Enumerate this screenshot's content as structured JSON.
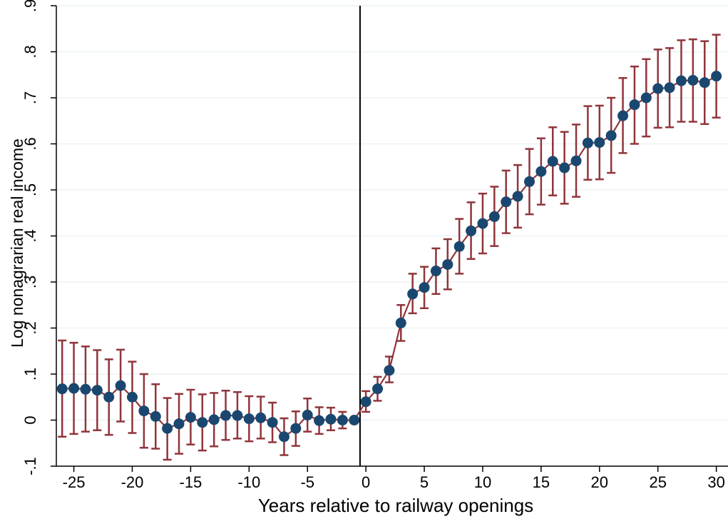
{
  "chart_data": {
    "type": "line",
    "xlabel": "Years relative to railway openings",
    "ylabel": "Log nonagrarian real income",
    "xlim": [
      -26.5,
      31
    ],
    "ylim": [
      -0.1,
      0.9
    ],
    "xticks": [
      -25,
      -20,
      -15,
      -10,
      -5,
      0,
      5,
      10,
      15,
      20,
      25,
      30
    ],
    "xtick_labels": [
      "-25",
      "-20",
      "-15",
      "-10",
      "-5",
      "0",
      "5",
      "10",
      "15",
      "20",
      "25",
      "30"
    ],
    "yticks": [
      -0.1,
      0,
      0.1,
      0.2,
      0.3,
      0.4,
      0.5,
      0.6,
      0.7,
      0.8,
      0.9
    ],
    "ytick_labels": [
      "-.1",
      "0",
      ".1",
      ".2",
      ".3",
      ".4",
      ".5",
      ".6",
      ".7",
      ".8",
      ".9"
    ],
    "grid": true,
    "vline_x": -0.5,
    "colors": {
      "marker": "#1a476f",
      "line": "#90353b",
      "grid": "#eaf2f3",
      "vline": "#000000"
    },
    "x": [
      -26,
      -25,
      -24,
      -23,
      -22,
      -21,
      -20,
      -19,
      -18,
      -17,
      -16,
      -15,
      -14,
      -13,
      -12,
      -11,
      -10,
      -9,
      -8,
      -7,
      -6,
      -5,
      -4,
      -3,
      -2,
      -1,
      0,
      1,
      2,
      3,
      4,
      5,
      6,
      7,
      8,
      9,
      10,
      11,
      12,
      13,
      14,
      15,
      16,
      17,
      18,
      19,
      20,
      21,
      22,
      23,
      24,
      25,
      26,
      27,
      28,
      29,
      30
    ],
    "y": [
      0.068,
      0.069,
      0.067,
      0.065,
      0.05,
      0.075,
      0.05,
      0.02,
      0.008,
      -0.018,
      -0.008,
      0.006,
      -0.005,
      0.001,
      0.01,
      0.01,
      0.003,
      0.005,
      -0.005,
      -0.036,
      -0.018,
      0.011,
      -0.001,
      0.002,
      0.0,
      0.0,
      0.04,
      0.068,
      0.108,
      0.211,
      0.274,
      0.288,
      0.324,
      0.338,
      0.377,
      0.411,
      0.427,
      0.442,
      0.474,
      0.486,
      0.518,
      0.54,
      0.562,
      0.548,
      0.563,
      0.602,
      0.603,
      0.618,
      0.661,
      0.685,
      0.7,
      0.72,
      0.722,
      0.737,
      0.738,
      0.733,
      0.747
    ],
    "ci_low": [
      -0.036,
      -0.03,
      -0.025,
      -0.022,
      -0.032,
      -0.003,
      -0.028,
      -0.06,
      -0.062,
      -0.086,
      -0.073,
      -0.053,
      -0.066,
      -0.057,
      -0.043,
      -0.04,
      -0.046,
      -0.04,
      -0.048,
      -0.076,
      -0.056,
      -0.025,
      -0.03,
      -0.022,
      -0.018,
      -0.005,
      0.018,
      0.042,
      0.082,
      0.172,
      0.232,
      0.243,
      0.274,
      0.284,
      0.318,
      0.35,
      0.362,
      0.378,
      0.406,
      0.418,
      0.447,
      0.468,
      0.488,
      0.47,
      0.485,
      0.522,
      0.523,
      0.537,
      0.58,
      0.6,
      0.616,
      0.635,
      0.636,
      0.648,
      0.648,
      0.643,
      0.657
    ],
    "ci_high": [
      0.173,
      0.168,
      0.16,
      0.152,
      0.132,
      0.153,
      0.127,
      0.1,
      0.078,
      0.048,
      0.057,
      0.066,
      0.056,
      0.059,
      0.064,
      0.061,
      0.052,
      0.051,
      0.038,
      0.004,
      0.019,
      0.047,
      0.028,
      0.027,
      0.018,
      0.005,
      0.063,
      0.094,
      0.138,
      0.25,
      0.318,
      0.333,
      0.373,
      0.393,
      0.437,
      0.473,
      0.492,
      0.507,
      0.542,
      0.554,
      0.589,
      0.612,
      0.636,
      0.626,
      0.642,
      0.682,
      0.683,
      0.7,
      0.743,
      0.768,
      0.784,
      0.805,
      0.808,
      0.825,
      0.827,
      0.823,
      0.837
    ]
  }
}
